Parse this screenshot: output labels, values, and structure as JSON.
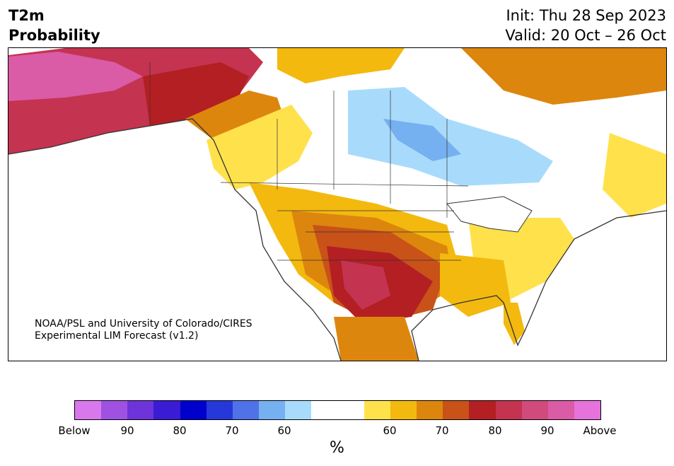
{
  "header": {
    "title_line1": "T2m",
    "title_line2": "Probability",
    "init": "Init: Thu 28 Sep 2023",
    "valid": "Valid: 20 Oct – 26 Oct"
  },
  "credit": {
    "line1": "NOAA/PSL and University of Colorado/CIRES",
    "line2": "Experimental LIM Forecast (v1.2)"
  },
  "colors": {
    "below": [
      "#d978ec",
      "#9f52e1",
      "#6e33d9",
      "#3a1cd4",
      "#0000cc",
      "#2638d9",
      "#4f72e8",
      "#75b0f0",
      "#a8dbfb"
    ],
    "neutral": [
      "#ffffff",
      "#ffffff"
    ],
    "above": [
      "#ffe14c",
      "#f3b90e",
      "#dd860e",
      "#c85218",
      "#b31f22",
      "#c43350",
      "#d14a7c",
      "#da5ba6",
      "#e672db"
    ]
  },
  "colorbar": {
    "ticks": [
      "Below",
      "90",
      "80",
      "70",
      "60",
      "60",
      "70",
      "80",
      "90",
      "Above"
    ],
    "unit": "%"
  }
}
